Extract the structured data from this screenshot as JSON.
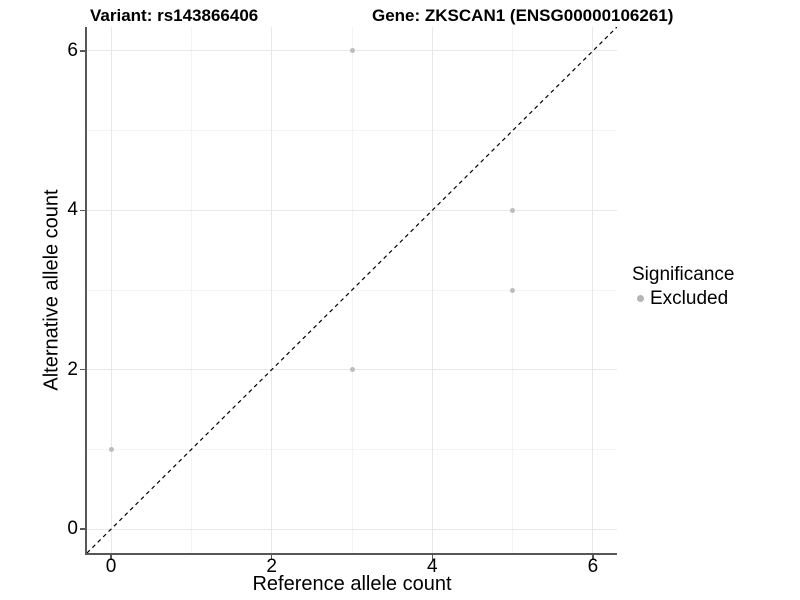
{
  "chart_data": {
    "type": "scatter",
    "title_left": "Variant: rs143866406",
    "title_right": "Gene: ZKSCAN1 (ENSG00000106261)",
    "xlabel": "Reference allele count",
    "ylabel": "Alternative allele count",
    "xlim": [
      -0.3,
      6.3
    ],
    "ylim": [
      -0.3,
      6.3
    ],
    "x_ticks": [
      0,
      2,
      4,
      6
    ],
    "y_ticks": [
      0,
      2,
      4,
      6
    ],
    "x_minor_gridlines": [
      1,
      3,
      5
    ],
    "y_minor_gridlines": [
      1,
      3,
      5
    ],
    "grid": "on",
    "points": [
      {
        "x": 0,
        "y": 1,
        "significance": "Excluded"
      },
      {
        "x": 3,
        "y": 2,
        "significance": "Excluded"
      },
      {
        "x": 3,
        "y": 6,
        "significance": "Excluded"
      },
      {
        "x": 5,
        "y": 3,
        "significance": "Excluded"
      },
      {
        "x": 5,
        "y": 4,
        "significance": "Excluded"
      }
    ],
    "point_color": "#bdbdbd",
    "identity_line": {
      "style": "dashed",
      "color": "#000000",
      "from": [
        -0.3,
        -0.3
      ],
      "to": [
        6.3,
        6.3
      ]
    },
    "legend": {
      "title": "Significance",
      "position": "right",
      "entries": [
        {
          "label": "Excluded",
          "color": "#b5b5b5"
        }
      ]
    }
  }
}
